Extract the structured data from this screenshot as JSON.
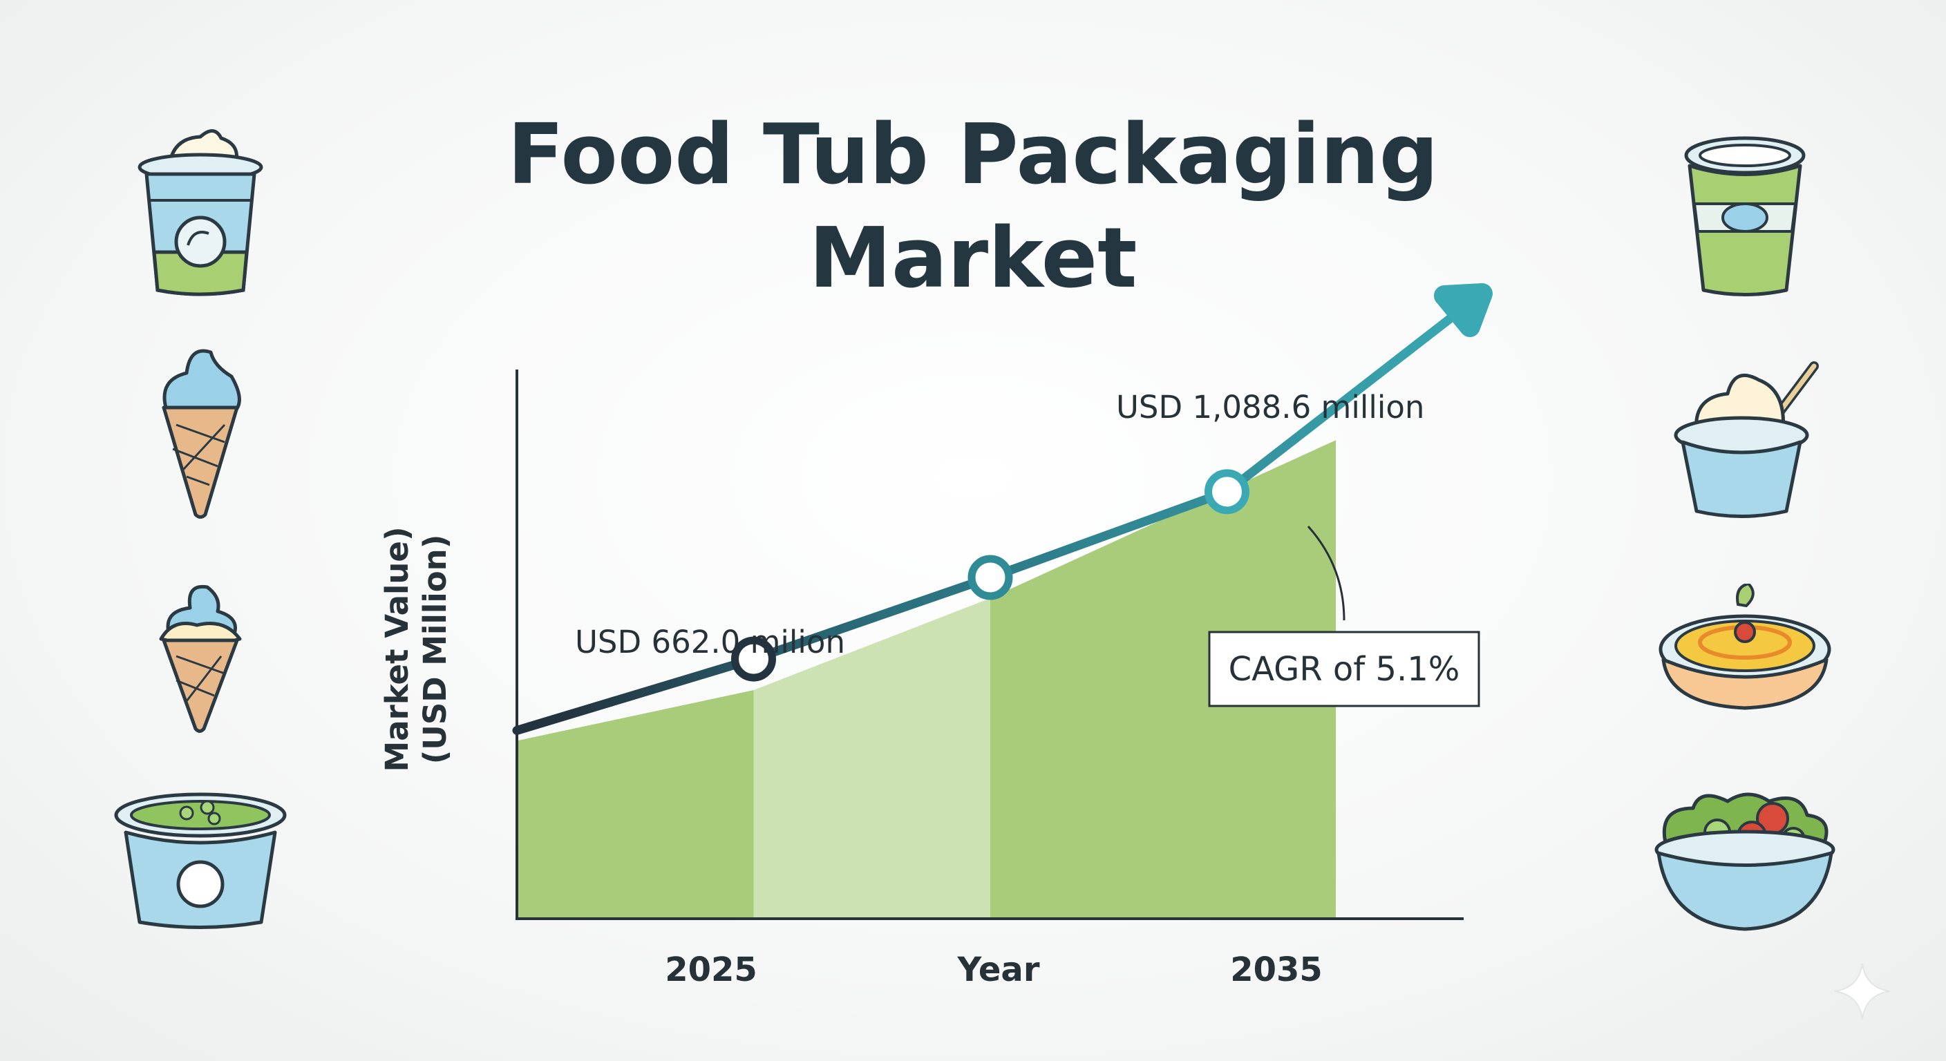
{
  "title_line1": "Food Tub Packaging",
  "title_line2": "Market",
  "chart_data": {
    "type": "line",
    "title": "Food Tub Packaging Market",
    "xlabel": "Year",
    "ylabel_line1": "Market Value)",
    "ylabel_line2": "(USD Million)",
    "x_tick_labels": [
      "2025",
      "2035"
    ],
    "annotations": {
      "start": "USD 662.0 milion",
      "end": "USD 1,088.6 million",
      "cagr": "CAGR of 5.1%"
    },
    "series": [
      {
        "x": [
          2020,
          2025,
          2030,
          2035
        ],
        "y": [
          480,
          662.0,
          870,
          1088.6
        ]
      }
    ],
    "area_y_at_right_edge": 1220,
    "xlim": [
      2020,
      2040
    ],
    "ylim": [
      0,
      1400
    ],
    "grid": false,
    "colors": {
      "line_start": "#233440",
      "line_end": "#3aa9b3",
      "area_dark": "#a9cc7a",
      "area_light": "#cde2b2",
      "marker_fill": "#ffffff"
    }
  },
  "icons": [
    "yogurt-cup-icon",
    "ice-cream-cone-icon",
    "soft-serve-cone-icon",
    "pea-soup-tub-icon",
    "green-yogurt-cup-icon",
    "yogurt-spoon-tub-icon",
    "dip-bowl-icon",
    "salad-bowl-icon"
  ]
}
